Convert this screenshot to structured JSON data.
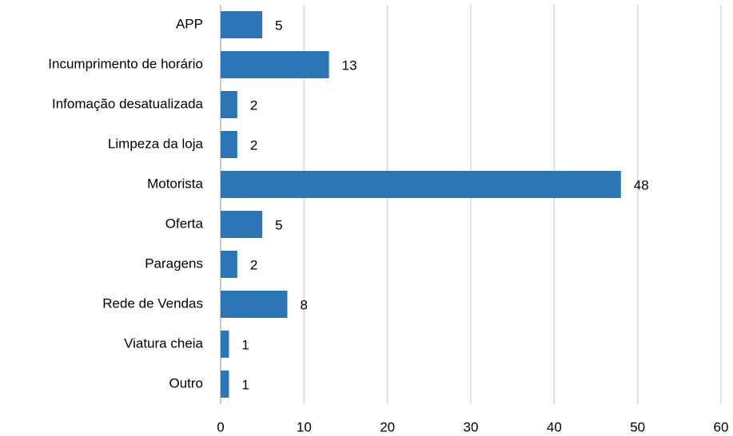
{
  "chart_data": {
    "type": "bar",
    "orientation": "horizontal",
    "categories": [
      "APP",
      "Incumprimento de horário",
      "Infomação desatualizada",
      "Limpeza da loja",
      "Motorista",
      "Oferta",
      "Paragens",
      "Rede de Vendas",
      "Viatura cheia",
      "Outro"
    ],
    "values": [
      5,
      13,
      2,
      2,
      48,
      5,
      2,
      8,
      1,
      1
    ],
    "color": "#2e75b6",
    "xlim": [
      0,
      60
    ],
    "xticks": [
      0,
      10,
      20,
      30,
      40,
      50,
      60
    ],
    "grid": true
  }
}
